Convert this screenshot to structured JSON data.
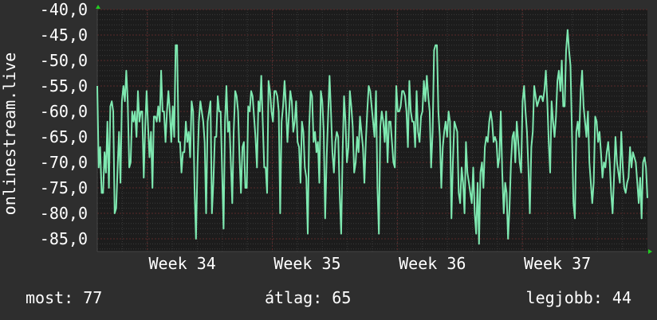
{
  "chart_data": {
    "type": "line",
    "ylabel": "onlinestream.live",
    "ylim": [
      -87.5,
      -40.0
    ],
    "y_ticks": [
      "-40,0",
      "-45,0",
      "-50,0",
      "-55,0",
      "-60,0",
      "-65,0",
      "-70,0",
      "-75,0",
      "-80,0",
      "-85,0"
    ],
    "y_tick_values": [
      -40,
      -45,
      -50,
      -55,
      -60,
      -65,
      -70,
      -75,
      -80,
      -85
    ],
    "x_ticks": [
      "Week 34",
      "Week 35",
      "Week 36",
      "Week 37"
    ],
    "x_tick_positions": [
      3.4,
      8.4,
      13.4,
      18.4
    ],
    "x_range": [
      0,
      22
    ],
    "grid": true,
    "line_color": "#7ee8b0",
    "series": [
      {
        "values": [
          -55,
          -71,
          -67,
          -76,
          -76,
          -68,
          -72,
          -62,
          -75,
          -59,
          -58,
          -60,
          -80,
          -79,
          -71,
          -64,
          -74,
          -58,
          -55,
          -58,
          -52,
          -58,
          -71,
          -70,
          -60,
          -62,
          -60,
          -65,
          -56,
          -62,
          -60,
          -60,
          -73,
          -63,
          -56,
          -63,
          -69,
          -64,
          -75,
          -61,
          -61,
          -62,
          -59,
          -62,
          -52,
          -60,
          -60,
          -66,
          -60,
          -56,
          -60,
          -66,
          -59,
          -65,
          -47,
          -47,
          -66,
          -66,
          -72,
          -68,
          -68,
          -62,
          -66,
          -64,
          -69,
          -58,
          -60,
          -75,
          -85,
          -71,
          -62,
          -58,
          -60,
          -62,
          -66,
          -80,
          -62,
          -60,
          -58,
          -80,
          -74,
          -65,
          -65,
          -57,
          -60,
          -60,
          -72,
          -83,
          -62,
          -55,
          -64,
          -62,
          -70,
          -78,
          -64,
          -56,
          -57,
          -60,
          -69,
          -76,
          -67,
          -66,
          -75,
          -75,
          -59,
          -60,
          -56,
          -57,
          -61,
          -65,
          -71,
          -58,
          -60,
          -53,
          -62,
          -71,
          -71,
          -76,
          -54,
          -56,
          -60,
          -62,
          -56,
          -56,
          -57,
          -60,
          -80,
          -62,
          -59,
          -54,
          -59,
          -66,
          -61,
          -56,
          -58,
          -64,
          -62,
          -58,
          -66,
          -67,
          -74,
          -62,
          -64,
          -71,
          -73,
          -84,
          -63,
          -56,
          -57,
          -66,
          -64,
          -68,
          -66,
          -74,
          -56,
          -58,
          -64,
          -81,
          -69,
          -61,
          -53,
          -60,
          -68,
          -72,
          -66,
          -64,
          -65,
          -76,
          -84,
          -68,
          -57,
          -62,
          -70,
          -67,
          -56,
          -59,
          -63,
          -72,
          -70,
          -65,
          -68,
          -61,
          -64,
          -67,
          -74,
          -66,
          -60,
          -55,
          -56,
          -59,
          -62,
          -65,
          -56,
          -75,
          -84,
          -63,
          -60,
          -62,
          -66,
          -60,
          -70,
          -62,
          -62,
          -66,
          -70,
          -71,
          -55,
          -60,
          -60,
          -59,
          -56,
          -56,
          -57,
          -60,
          -67,
          -54,
          -60,
          -62,
          -62,
          -67,
          -56,
          -64,
          -66,
          -61,
          -60,
          -54,
          -58,
          -53,
          -57,
          -60,
          -71,
          -64,
          -48,
          -47,
          -47,
          -60,
          -65,
          -75,
          -67,
          -64,
          -62,
          -65,
          -60,
          -62,
          -81,
          -70,
          -62,
          -63,
          -64,
          -76,
          -78,
          -71,
          -74,
          -80,
          -66,
          -72,
          -74,
          -76,
          -78,
          -71,
          -80,
          -84,
          -74,
          -86,
          -72,
          -70,
          -75,
          -67,
          -65,
          -66,
          -62,
          -60,
          -62,
          -66,
          -65,
          -66,
          -71,
          -69,
          -60,
          -72,
          -80,
          -74,
          -76,
          -85,
          -79,
          -70,
          -65,
          -64,
          -70,
          -62,
          -66,
          -70,
          -72,
          -58,
          -55,
          -60,
          -64,
          -71,
          -80,
          -67,
          -64,
          -55,
          -57,
          -59,
          -58,
          -57,
          -57,
          -58,
          -56,
          -52,
          -58,
          -66,
          -72,
          -58,
          -62,
          -65,
          -61,
          -54,
          -52,
          -56,
          -50,
          -59,
          -59,
          -48,
          -44,
          -48,
          -51,
          -64,
          -78,
          -81,
          -64,
          -62,
          -65,
          -56,
          -52,
          -59,
          -62,
          -65,
          -60,
          -70,
          -74,
          -78,
          -74,
          -61,
          -62,
          -66,
          -64,
          -68,
          -73,
          -70,
          -71,
          -68,
          -66,
          -70,
          -76,
          -80,
          -73,
          -65,
          -70,
          -72,
          -74,
          -64,
          -71,
          -75,
          -76,
          -74,
          -73,
          -67,
          -71,
          -68,
          -69,
          -70,
          -74,
          -78,
          -73,
          -81,
          -70,
          -69,
          -71,
          -77
        ]
      }
    ]
  },
  "stats": {
    "current_label": "most:",
    "current_value": "77",
    "average_label": "átlag:",
    "average_value": "65",
    "best_label": "legjobb:",
    "best_value": "44"
  },
  "colors": {
    "background": "#2e2e2e",
    "plot_background": "#1c1c1c",
    "grid_major": "#5a2a2a",
    "grid_minor": "#3a3a3a",
    "line": "#7ee8b0",
    "axis_arrow": "#22cc22"
  }
}
